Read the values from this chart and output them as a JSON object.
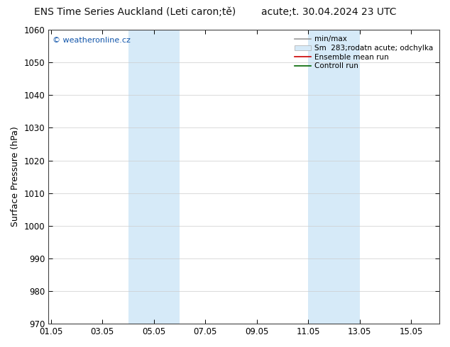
{
  "title_left": "ENS Time Series Auckland (Leti caron;tě)",
  "title_right": "acute;t. 30.04.2024 23 UTC",
  "ylabel": "Surface Pressure (hPa)",
  "ylim": [
    970,
    1060
  ],
  "yticks": [
    970,
    980,
    990,
    1000,
    1010,
    1020,
    1030,
    1040,
    1050,
    1060
  ],
  "xtick_labels": [
    "01.05",
    "03.05",
    "05.05",
    "07.05",
    "09.05",
    "11.05",
    "13.05",
    "15.05"
  ],
  "xtick_positions": [
    0,
    2,
    4,
    6,
    8,
    10,
    12,
    14
  ],
  "xlim": [
    -0.1,
    15.1
  ],
  "shaded_regions": [
    {
      "start": 3.0,
      "end": 5.0,
      "color": "#d6eaf8"
    },
    {
      "start": 10.0,
      "end": 12.0,
      "color": "#d6eaf8"
    }
  ],
  "watermark_text": "© weatheronline.cz",
  "legend_entries": [
    {
      "label": "min/max",
      "color": "#999999",
      "lw": 1.2,
      "patch": false
    },
    {
      "label": "Sm  283;rodatn acute; odchylka",
      "color": "#d6eaf8",
      "lw": 6,
      "patch": true
    },
    {
      "label": "Ensemble mean run",
      "color": "#cc0000",
      "lw": 1.2,
      "patch": false
    },
    {
      "label": "Controll run",
      "color": "#006600",
      "lw": 1.2,
      "patch": false
    }
  ],
  "bg_color": "#ffffff",
  "plot_bg_color": "#ffffff",
  "grid_color": "#cccccc",
  "title_fontsize": 10,
  "tick_fontsize": 8.5,
  "ylabel_fontsize": 9
}
